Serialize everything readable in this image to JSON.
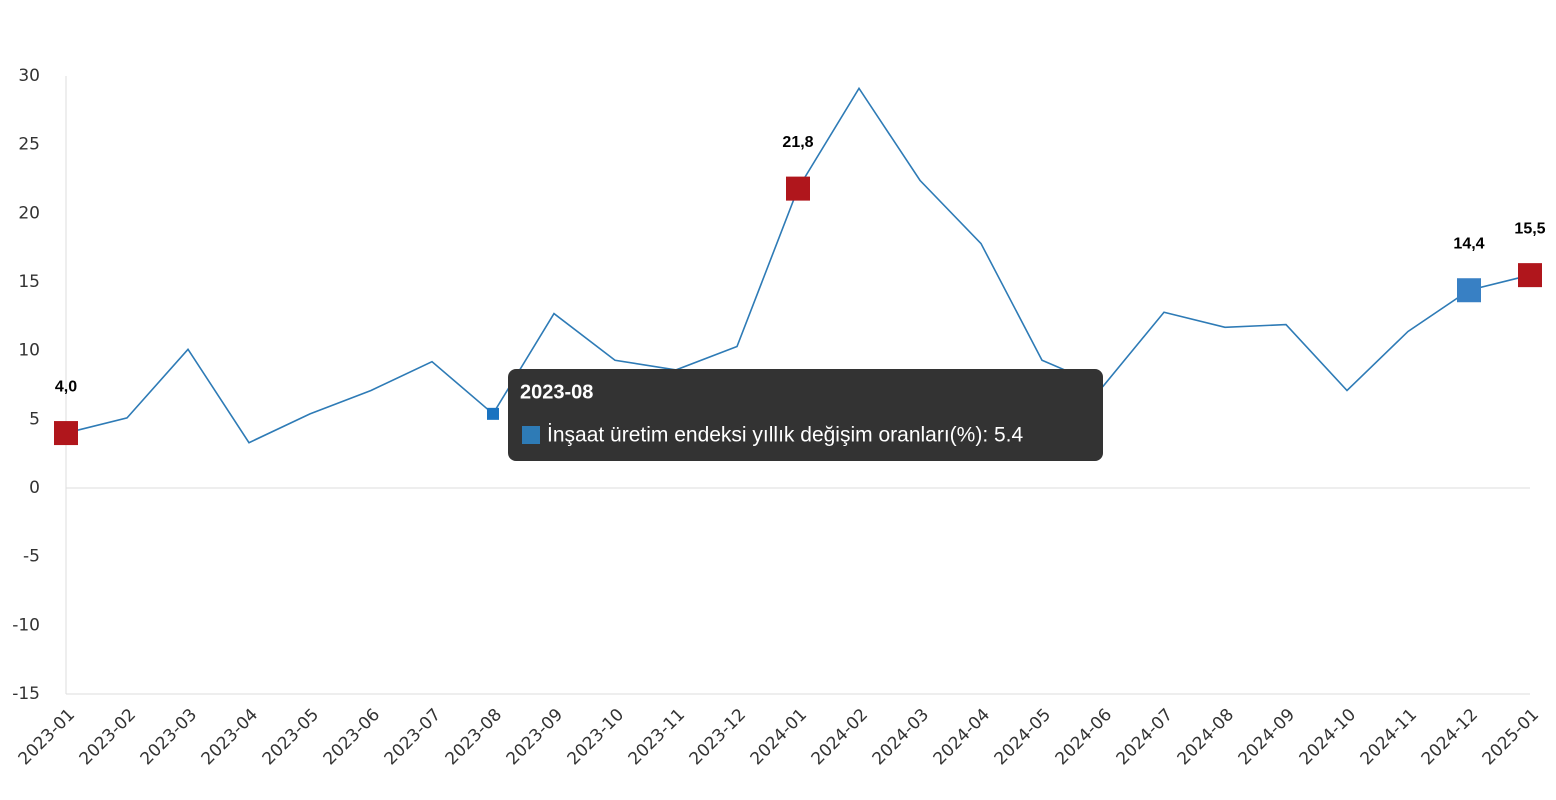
{
  "chart_data": {
    "type": "line",
    "categories": [
      "2023-01",
      "2023-02",
      "2023-03",
      "2023-04",
      "2023-05",
      "2023-06",
      "2023-07",
      "2023-08",
      "2023-09",
      "2023-10",
      "2023-11",
      "2023-12",
      "2024-01",
      "2024-02",
      "2024-03",
      "2024-04",
      "2024-05",
      "2024-06",
      "2024-07",
      "2024-08",
      "2024-09",
      "2024-10",
      "2024-11",
      "2024-12",
      "2025-01"
    ],
    "series": [
      {
        "color": "#2e7bb6",
        "values": [
          4.0,
          5.1,
          10.1,
          3.3,
          5.4,
          7.1,
          9.2,
          5.4,
          12.7,
          9.3,
          8.6,
          10.3,
          21.8,
          29.1,
          22.4,
          17.8,
          9.3,
          7.4,
          12.8,
          11.7,
          11.9,
          7.1,
          11.4,
          14.4,
          15.5
        ],
        "value_labels": [
          "4,0",
          null,
          null,
          null,
          null,
          null,
          null,
          null,
          null,
          null,
          null,
          null,
          "21,8",
          null,
          null,
          null,
          null,
          null,
          null,
          null,
          null,
          null,
          null,
          "14,4",
          "15,5"
        ],
        "marker_colors": [
          "#b0161c",
          null,
          null,
          null,
          null,
          null,
          null,
          "#1a73c0",
          null,
          null,
          null,
          null,
          "#b0161c",
          null,
          null,
          null,
          null,
          null,
          null,
          null,
          null,
          null,
          null,
          "#3880c4",
          "#b0161c"
        ]
      }
    ],
    "ylim": [
      -15,
      30
    ],
    "yticks": [
      -15,
      -10,
      -5,
      0,
      5,
      10,
      15,
      20,
      25,
      30
    ],
    "grid": false,
    "tooltip": {
      "title": "2023-08",
      "text": "İnşaat üretim endeksi yıllık değişim oranları(%): 5.4",
      "color": "#2e7bb6"
    }
  }
}
